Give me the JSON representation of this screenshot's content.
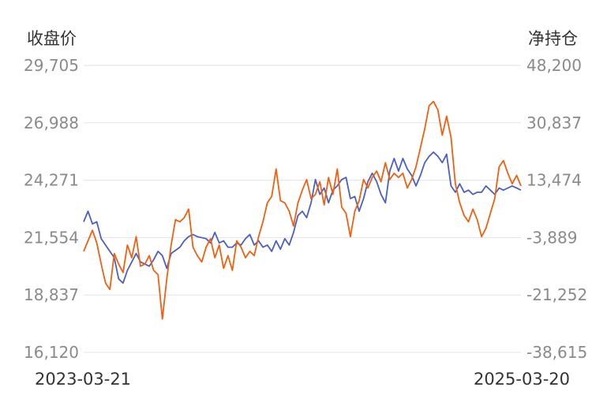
{
  "chart_data": {
    "type": "line",
    "left_axis_title": "收盘价",
    "right_axis_title": "净持仓",
    "left_ticks": [
      "29,705",
      "26,988",
      "24,271",
      "21,554",
      "18,837",
      "16,120"
    ],
    "right_ticks": [
      "48,200",
      "30,837",
      "13,474",
      "-3,889",
      "-21,252",
      "-38,615"
    ],
    "left_ylim": [
      16120,
      29705
    ],
    "right_ylim": [
      -38615,
      48200
    ],
    "x_start_label": "2023-03-21",
    "x_end_label": "2025-03-20",
    "grid": true,
    "series": [
      {
        "axis": "left",
        "color": "#4a5fc1",
        "points": [
          [
            0,
            22.3
          ],
          [
            0.01,
            22.8
          ],
          [
            0.02,
            22.2
          ],
          [
            0.03,
            22.3
          ],
          [
            0.04,
            21.5
          ],
          [
            0.05,
            21.2
          ],
          [
            0.07,
            20.6
          ],
          [
            0.08,
            19.6
          ],
          [
            0.09,
            19.4
          ],
          [
            0.1,
            20.0
          ],
          [
            0.12,
            20.8
          ],
          [
            0.13,
            20.4
          ],
          [
            0.15,
            20.2
          ],
          [
            0.16,
            20.5
          ],
          [
            0.17,
            20.9
          ],
          [
            0.18,
            20.7
          ],
          [
            0.19,
            20.1
          ],
          [
            0.2,
            20.8
          ],
          [
            0.22,
            21.1
          ],
          [
            0.23,
            21.4
          ],
          [
            0.24,
            21.6
          ],
          [
            0.25,
            21.7
          ],
          [
            0.26,
            21.6
          ],
          [
            0.28,
            21.5
          ],
          [
            0.29,
            21.3
          ],
          [
            0.3,
            21.8
          ],
          [
            0.31,
            21.3
          ],
          [
            0.32,
            21.4
          ],
          [
            0.33,
            21.1
          ],
          [
            0.34,
            21.1
          ],
          [
            0.35,
            21.3
          ],
          [
            0.36,
            21.2
          ],
          [
            0.37,
            21.5
          ],
          [
            0.38,
            21.7
          ],
          [
            0.39,
            21.2
          ],
          [
            0.4,
            21.4
          ],
          [
            0.41,
            21.1
          ],
          [
            0.42,
            21.2
          ],
          [
            0.43,
            20.9
          ],
          [
            0.44,
            21.4
          ],
          [
            0.45,
            21.0
          ],
          [
            0.46,
            21.5
          ],
          [
            0.47,
            21.2
          ],
          [
            0.48,
            21.8
          ],
          [
            0.49,
            22.6
          ],
          [
            0.5,
            22.8
          ],
          [
            0.51,
            22.5
          ],
          [
            0.52,
            23.2
          ],
          [
            0.53,
            24.3
          ],
          [
            0.54,
            23.6
          ],
          [
            0.55,
            23.9
          ],
          [
            0.56,
            23.2
          ],
          [
            0.57,
            23.8
          ],
          [
            0.58,
            24.0
          ],
          [
            0.59,
            24.3
          ],
          [
            0.6,
            24.4
          ],
          [
            0.61,
            23.4
          ],
          [
            0.62,
            23.5
          ],
          [
            0.63,
            22.8
          ],
          [
            0.64,
            23.4
          ],
          [
            0.65,
            24.2
          ],
          [
            0.66,
            24.6
          ],
          [
            0.67,
            24.2
          ],
          [
            0.68,
            23.6
          ],
          [
            0.69,
            23.2
          ],
          [
            0.7,
            24.7
          ],
          [
            0.71,
            25.3
          ],
          [
            0.72,
            24.7
          ],
          [
            0.73,
            25.3
          ],
          [
            0.74,
            24.8
          ],
          [
            0.75,
            24.5
          ],
          [
            0.76,
            24.0
          ],
          [
            0.77,
            24.5
          ],
          [
            0.78,
            25.1
          ],
          [
            0.79,
            25.4
          ],
          [
            0.8,
            25.6
          ],
          [
            0.81,
            25.4
          ],
          [
            0.82,
            25.1
          ],
          [
            0.83,
            25.5
          ],
          [
            0.84,
            24.0
          ],
          [
            0.85,
            23.7
          ],
          [
            0.86,
            24.1
          ],
          [
            0.87,
            23.7
          ],
          [
            0.88,
            23.8
          ],
          [
            0.89,
            23.6
          ],
          [
            0.9,
            23.7
          ],
          [
            0.91,
            23.7
          ],
          [
            0.92,
            24.0
          ],
          [
            0.93,
            23.8
          ],
          [
            0.94,
            23.6
          ],
          [
            0.95,
            23.9
          ],
          [
            0.96,
            23.8
          ],
          [
            0.97,
            23.9
          ],
          [
            0.98,
            24.0
          ],
          [
            0.99,
            23.9
          ],
          [
            1.0,
            23.8
          ]
        ]
      },
      {
        "axis": "left",
        "color": "#f0600f",
        "points": [
          [
            0,
            20.9
          ],
          [
            0.01,
            21.4
          ],
          [
            0.02,
            21.9
          ],
          [
            0.03,
            21.3
          ],
          [
            0.04,
            20.3
          ],
          [
            0.05,
            19.4
          ],
          [
            0.06,
            19.1
          ],
          [
            0.07,
            20.8
          ],
          [
            0.08,
            20.3
          ],
          [
            0.09,
            19.9
          ],
          [
            0.1,
            21.2
          ],
          [
            0.11,
            20.6
          ],
          [
            0.12,
            21.6
          ],
          [
            0.13,
            20.2
          ],
          [
            0.14,
            20.3
          ],
          [
            0.15,
            20.7
          ],
          [
            0.16,
            20.0
          ],
          [
            0.17,
            19.8
          ],
          [
            0.18,
            17.7
          ],
          [
            0.19,
            19.6
          ],
          [
            0.2,
            21.2
          ],
          [
            0.21,
            22.4
          ],
          [
            0.22,
            22.3
          ],
          [
            0.23,
            22.5
          ],
          [
            0.24,
            22.9
          ],
          [
            0.25,
            21.1
          ],
          [
            0.26,
            20.7
          ],
          [
            0.27,
            20.4
          ],
          [
            0.28,
            21.1
          ],
          [
            0.29,
            21.5
          ],
          [
            0.3,
            20.6
          ],
          [
            0.31,
            21.2
          ],
          [
            0.32,
            20.1
          ],
          [
            0.33,
            20.7
          ],
          [
            0.34,
            20.0
          ],
          [
            0.35,
            21.4
          ],
          [
            0.36,
            21.1
          ],
          [
            0.37,
            20.6
          ],
          [
            0.38,
            20.9
          ],
          [
            0.39,
            20.7
          ],
          [
            0.4,
            21.6
          ],
          [
            0.41,
            22.3
          ],
          [
            0.42,
            23.2
          ],
          [
            0.43,
            23.5
          ],
          [
            0.44,
            24.8
          ],
          [
            0.45,
            23.3
          ],
          [
            0.46,
            23.2
          ],
          [
            0.47,
            22.8
          ],
          [
            0.48,
            22.1
          ],
          [
            0.49,
            23.2
          ],
          [
            0.5,
            23.8
          ],
          [
            0.51,
            24.3
          ],
          [
            0.52,
            23.4
          ],
          [
            0.53,
            23.6
          ],
          [
            0.54,
            24.2
          ],
          [
            0.55,
            23.1
          ],
          [
            0.56,
            24.4
          ],
          [
            0.57,
            23.6
          ],
          [
            0.58,
            24.8
          ],
          [
            0.59,
            23.0
          ],
          [
            0.6,
            22.7
          ],
          [
            0.61,
            21.6
          ],
          [
            0.62,
            22.8
          ],
          [
            0.63,
            23.3
          ],
          [
            0.64,
            24.3
          ],
          [
            0.65,
            23.9
          ],
          [
            0.66,
            24.4
          ],
          [
            0.67,
            24.7
          ],
          [
            0.68,
            24.2
          ],
          [
            0.69,
            25.1
          ],
          [
            0.7,
            24.3
          ],
          [
            0.71,
            24.6
          ],
          [
            0.72,
            24.4
          ],
          [
            0.73,
            24.6
          ],
          [
            0.74,
            23.9
          ],
          [
            0.75,
            24.3
          ],
          [
            0.76,
            24.9
          ],
          [
            0.77,
            25.8
          ],
          [
            0.78,
            26.7
          ],
          [
            0.79,
            27.8
          ],
          [
            0.8,
            28.0
          ],
          [
            0.81,
            27.6
          ],
          [
            0.82,
            26.4
          ],
          [
            0.83,
            27.3
          ],
          [
            0.84,
            26.3
          ],
          [
            0.85,
            24.1
          ],
          [
            0.86,
            23.2
          ],
          [
            0.87,
            22.6
          ],
          [
            0.88,
            22.3
          ],
          [
            0.89,
            22.9
          ],
          [
            0.9,
            22.4
          ],
          [
            0.91,
            21.6
          ],
          [
            0.92,
            22.0
          ],
          [
            0.93,
            22.7
          ],
          [
            0.94,
            23.4
          ],
          [
            0.95,
            24.9
          ],
          [
            0.96,
            25.2
          ],
          [
            0.97,
            24.6
          ],
          [
            0.98,
            24.1
          ],
          [
            0.99,
            24.5
          ],
          [
            1.0,
            24.0
          ]
        ]
      }
    ]
  }
}
